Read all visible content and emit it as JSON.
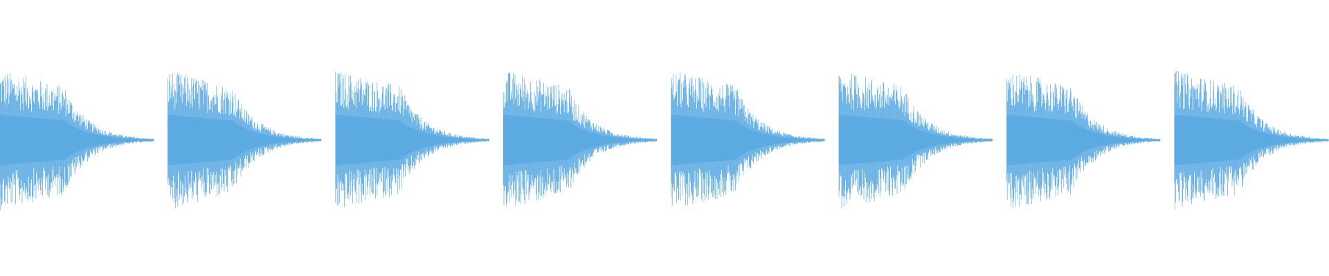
{
  "waveform": {
    "color": "#5dabe3"
  }
}
